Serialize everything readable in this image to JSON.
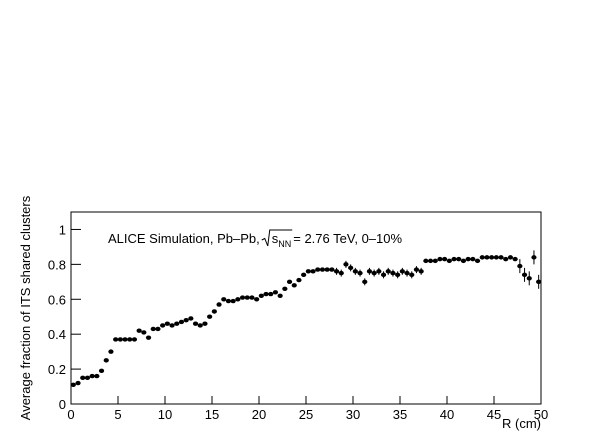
{
  "chart_data": {
    "type": "scatter",
    "annotation": {
      "text1": "ALICE Simulation, Pb–Pb,",
      "s": "s",
      "sub": "NN",
      "text2": "= 2.76 TeV, 0–10%"
    },
    "x_label": "R (cm)",
    "y_label": "Average fraction of ITS shared clusters",
    "xlim": [
      0,
      50
    ],
    "ylim": [
      0,
      1.1
    ],
    "xticks": [
      0,
      5,
      10,
      15,
      20,
      25,
      30,
      35,
      40,
      45,
      50
    ],
    "yticks": [
      0,
      0.2,
      0.4,
      0.6,
      0.8,
      1
    ],
    "color": "#000000",
    "x": [
      0.25,
      0.75,
      1.25,
      1.75,
      2.25,
      2.75,
      3.25,
      3.75,
      4.25,
      4.75,
      5.25,
      5.75,
      6.25,
      6.75,
      7.25,
      7.75,
      8.25,
      8.75,
      9.25,
      9.75,
      10.25,
      10.75,
      11.25,
      11.75,
      12.25,
      12.75,
      13.25,
      13.75,
      14.25,
      14.75,
      15.25,
      15.75,
      16.25,
      16.75,
      17.25,
      17.75,
      18.25,
      18.75,
      19.25,
      19.75,
      20.25,
      20.75,
      21.25,
      21.75,
      22.25,
      22.75,
      23.25,
      23.75,
      24.25,
      24.75,
      25.25,
      25.75,
      26.25,
      26.75,
      27.25,
      27.75,
      28.25,
      28.75,
      29.25,
      29.75,
      30.25,
      30.75,
      31.25,
      31.75,
      32.25,
      32.75,
      33.25,
      33.75,
      34.25,
      34.75,
      35.25,
      35.75,
      36.25,
      36.75,
      37.25,
      37.75,
      38.25,
      38.75,
      39.25,
      39.75,
      40.25,
      40.75,
      41.25,
      41.75,
      42.25,
      42.75,
      43.25,
      43.75,
      44.25,
      44.75,
      45.25,
      45.75,
      46.25,
      46.75,
      47.25,
      47.75,
      48.25,
      48.75,
      49.25,
      49.75
    ],
    "values": [
      0.11,
      0.12,
      0.15,
      0.15,
      0.16,
      0.16,
      0.19,
      0.25,
      0.3,
      0.37,
      0.37,
      0.37,
      0.37,
      0.37,
      0.42,
      0.41,
      0.38,
      0.43,
      0.43,
      0.45,
      0.46,
      0.45,
      0.46,
      0.47,
      0.48,
      0.49,
      0.46,
      0.45,
      0.46,
      0.5,
      0.53,
      0.57,
      0.6,
      0.59,
      0.59,
      0.6,
      0.61,
      0.61,
      0.61,
      0.6,
      0.62,
      0.63,
      0.63,
      0.64,
      0.62,
      0.66,
      0.7,
      0.68,
      0.71,
      0.74,
      0.76,
      0.76,
      0.77,
      0.77,
      0.77,
      0.77,
      0.76,
      0.75,
      0.8,
      0.78,
      0.76,
      0.75,
      0.7,
      0.76,
      0.75,
      0.76,
      0.74,
      0.76,
      0.75,
      0.74,
      0.76,
      0.75,
      0.74,
      0.77,
      0.76,
      0.82,
      0.82,
      0.82,
      0.83,
      0.83,
      0.82,
      0.83,
      0.83,
      0.82,
      0.83,
      0.83,
      0.82,
      0.84,
      0.84,
      0.84,
      0.84,
      0.84,
      0.83,
      0.84,
      0.83,
      0.79,
      0.74,
      0.72,
      0.84,
      0.7
    ],
    "errors": [
      0.005,
      0.005,
      0.005,
      0.005,
      0.005,
      0.005,
      0.005,
      0.005,
      0.005,
      0.005,
      0.005,
      0.005,
      0.005,
      0.005,
      0.005,
      0.005,
      0.005,
      0.005,
      0.005,
      0.005,
      0.005,
      0.005,
      0.005,
      0.005,
      0.01,
      0.01,
      0.01,
      0.01,
      0.01,
      0.01,
      0.01,
      0.01,
      0.01,
      0.01,
      0.01,
      0.01,
      0.01,
      0.01,
      0.01,
      0.01,
      0.01,
      0.01,
      0.01,
      0.01,
      0.01,
      0.01,
      0.01,
      0.01,
      0.01,
      0.01,
      0.01,
      0.01,
      0.01,
      0.01,
      0.01,
      0.01,
      0.02,
      0.02,
      0.02,
      0.02,
      0.02,
      0.02,
      0.02,
      0.02,
      0.02,
      0.02,
      0.02,
      0.02,
      0.02,
      0.02,
      0.02,
      0.02,
      0.02,
      0.02,
      0.02,
      0.005,
      0.005,
      0.005,
      0.005,
      0.005,
      0.005,
      0.005,
      0.005,
      0.005,
      0.005,
      0.005,
      0.005,
      0.005,
      0.005,
      0.005,
      0.005,
      0.005,
      0.005,
      0.005,
      0.01,
      0.04,
      0.04,
      0.04,
      0.04,
      0.04
    ]
  }
}
